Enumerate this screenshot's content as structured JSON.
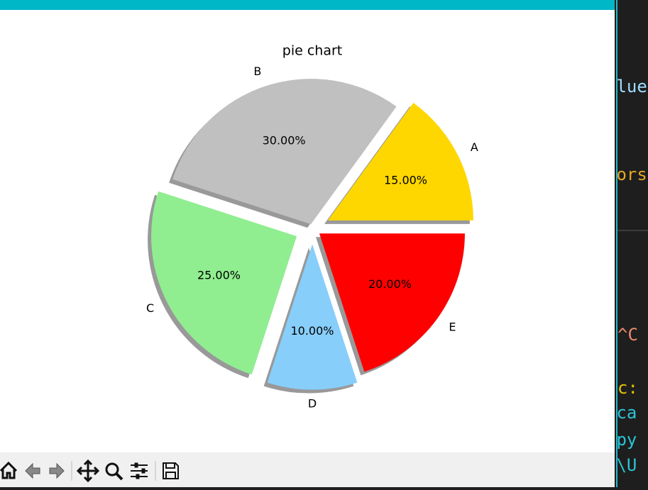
{
  "chart_data": {
    "type": "pie",
    "title": "pie chart",
    "categories": [
      "A",
      "B",
      "C",
      "D",
      "E"
    ],
    "values": [
      15,
      30,
      25,
      10,
      20
    ],
    "value_labels": [
      "15.00%",
      "30.00%",
      "25.00%",
      "10.00%",
      "20.00%"
    ],
    "colors": [
      "#ffd700",
      "#c0c0c0",
      "#90ee90",
      "#87cefa",
      "#ff0000"
    ],
    "explode": [
      0.12,
      0.03,
      0.12,
      0.11,
      0.06
    ],
    "shadow": true,
    "start_angle": 0
  },
  "terminal": {
    "lines": [
      {
        "text": "blue",
        "color": "#9cdcfe"
      },
      {
        "text": "lors",
        "color": "#e5a823"
      },
      {
        "text": "^C",
        "color": "#f08a6c"
      },
      {
        "text": "c:",
        "color": "#e5c100"
      },
      {
        "text": "oca",
        "color": "#29c5d6"
      },
      {
        "text": "gpy",
        "color": "#29c5d6"
      },
      {
        "text": ":\\U",
        "color": "#29c5d6"
      }
    ]
  }
}
